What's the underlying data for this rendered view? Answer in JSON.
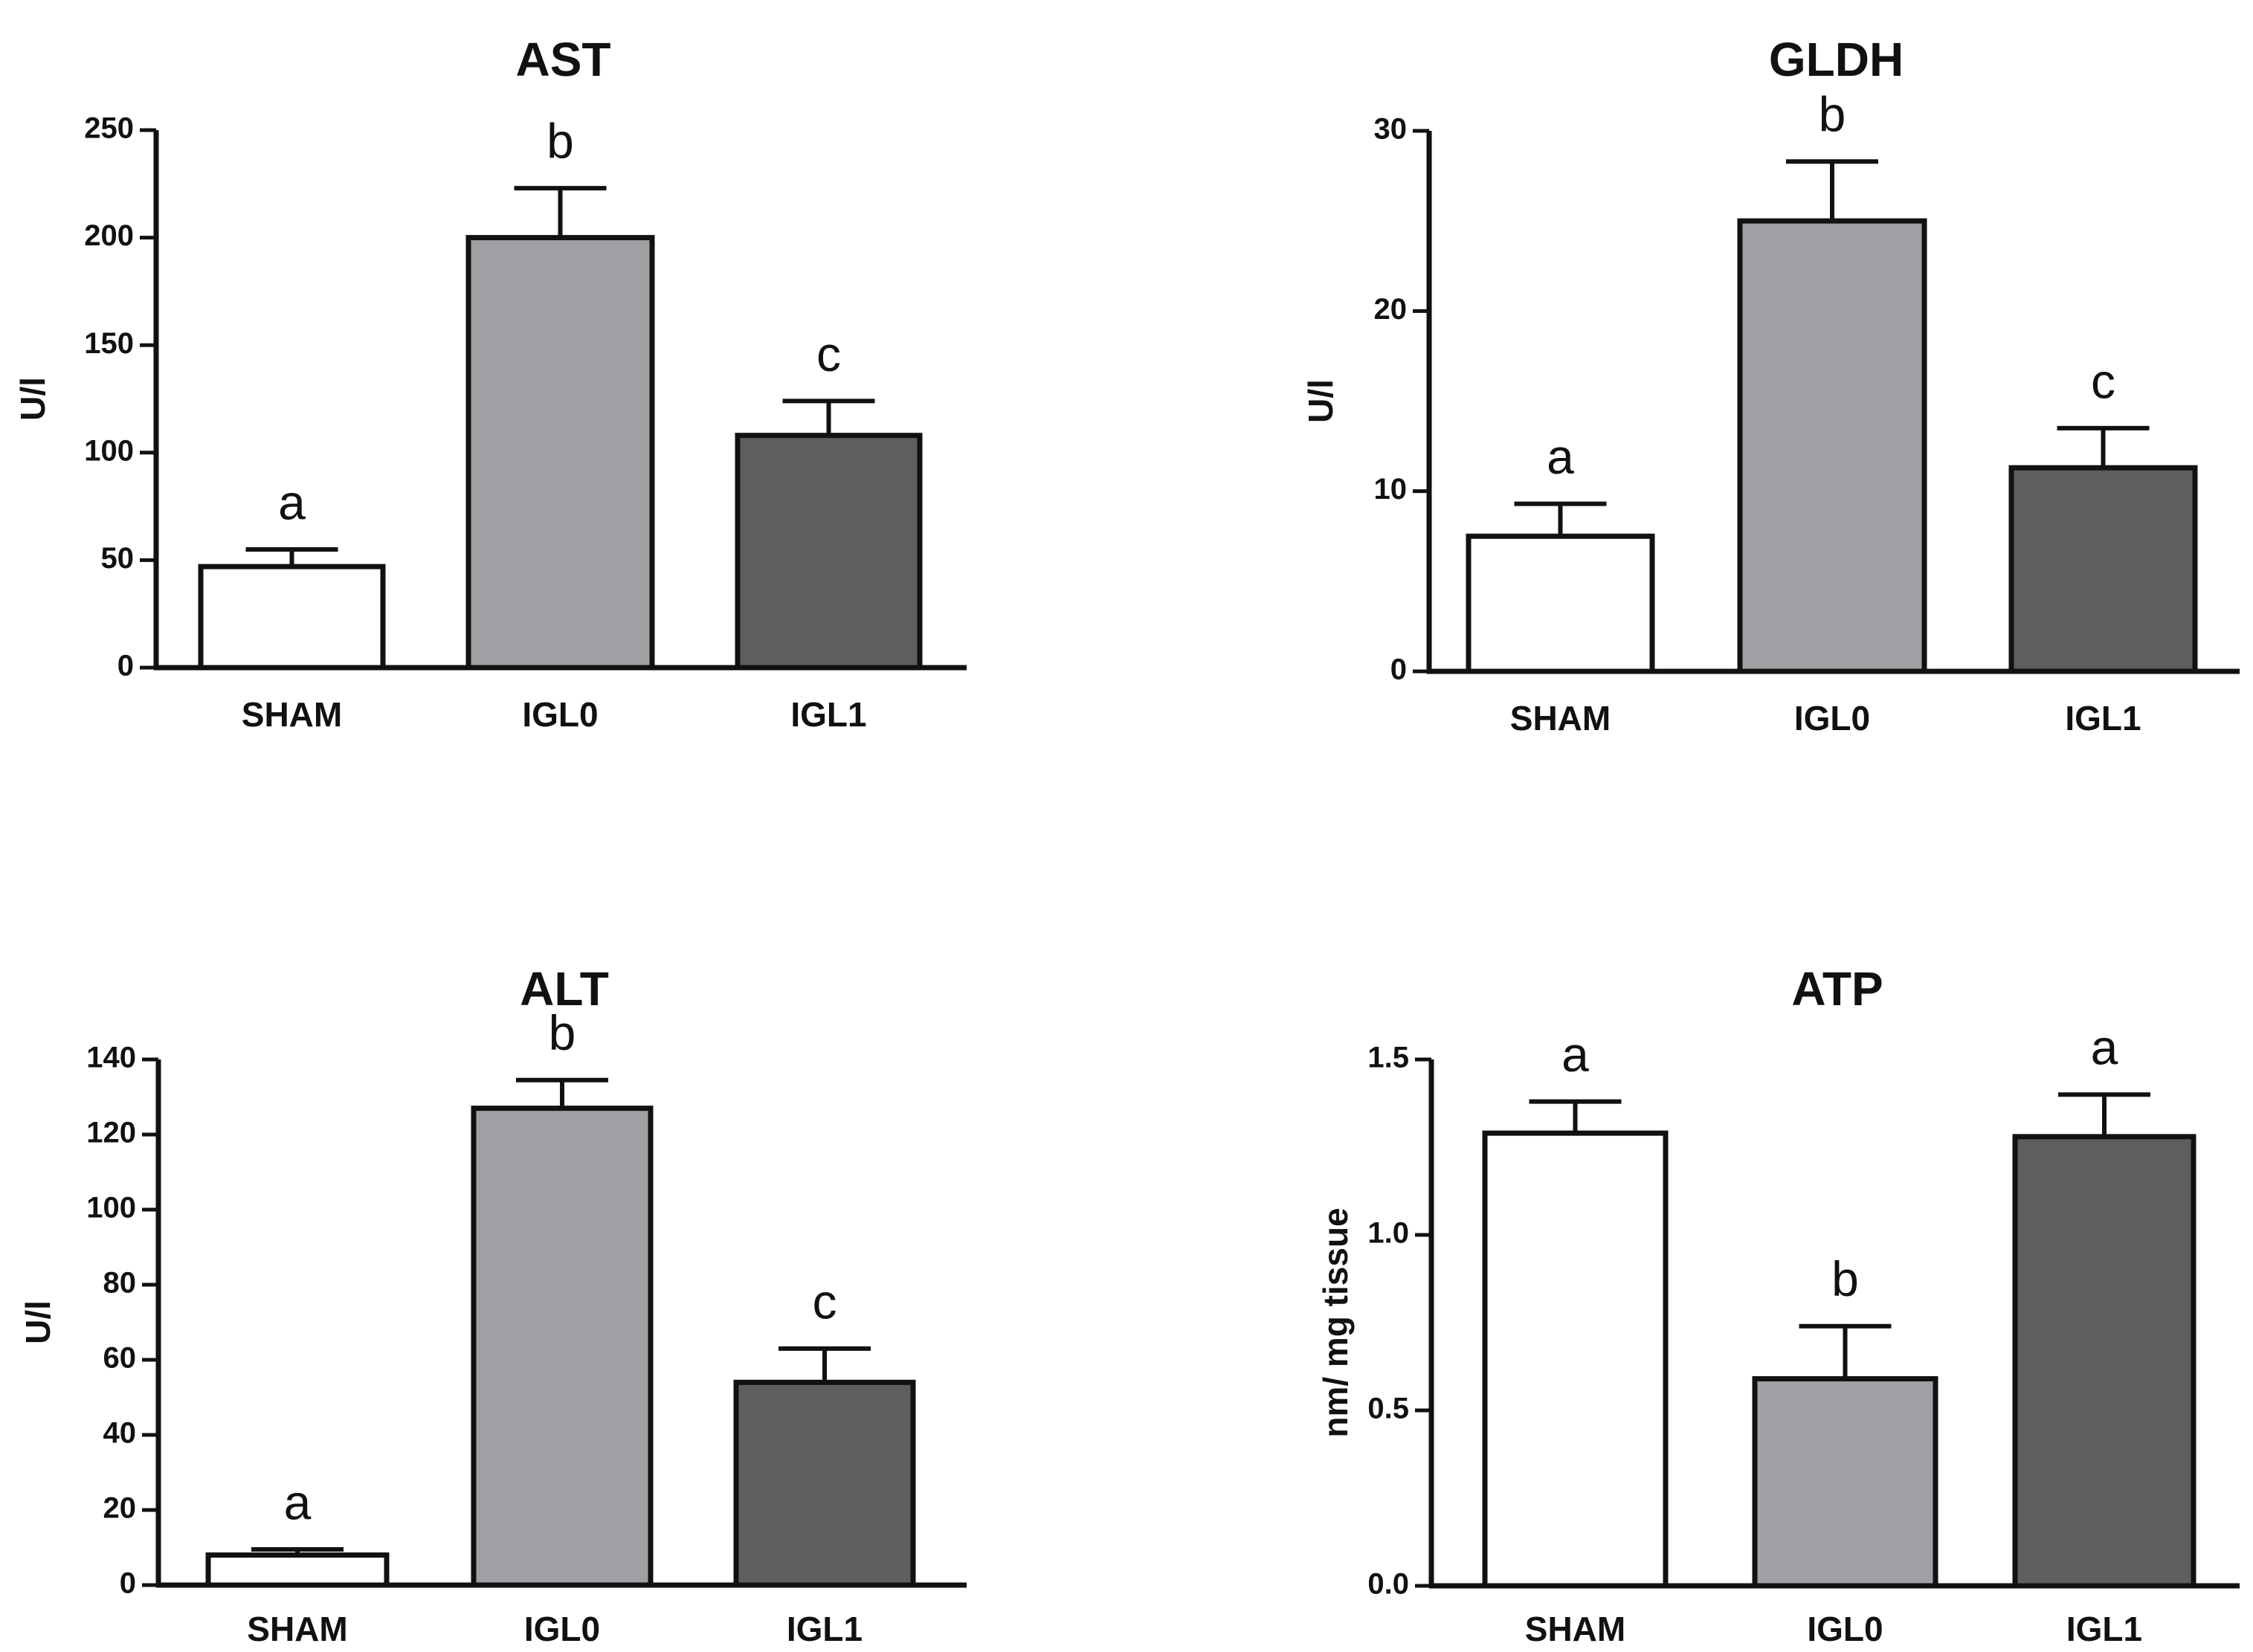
{
  "chart_data": [
    {
      "type": "bar",
      "title": "AST",
      "xlabel": "",
      "ylabel": "U/l",
      "ylim": [
        0,
        250
      ],
      "yticks": [
        "0",
        "50",
        "100",
        "150",
        "200",
        "250"
      ],
      "categories": [
        "SHAM",
        "IGL0",
        "IGL1"
      ],
      "values": [
        47,
        200,
        108
      ],
      "errors": [
        8,
        23,
        16
      ],
      "significance": [
        "a",
        "b",
        "c"
      ],
      "colors": [
        "#ffffff",
        "#a0a0a4",
        "#5e5e5e"
      ]
    },
    {
      "type": "bar",
      "title": "GLDH",
      "xlabel": "",
      "ylabel": "U/l",
      "ylim": [
        0,
        30
      ],
      "yticks": [
        "0",
        "10",
        "20",
        "30"
      ],
      "categories": [
        "SHAM",
        "IGL0",
        "IGL1"
      ],
      "values": [
        7.5,
        25,
        11.3
      ],
      "errors": [
        1.8,
        3.3,
        2.2
      ],
      "significance": [
        "a",
        "b",
        "c"
      ],
      "colors": [
        "#ffffff",
        "#a0a0a4",
        "#5e5e5e"
      ]
    },
    {
      "type": "bar",
      "title": "ALT",
      "xlabel": "",
      "ylabel": "U/l",
      "ylim": [
        0,
        140
      ],
      "yticks": [
        "0",
        "20",
        "40",
        "60",
        "80",
        "100",
        "120",
        "140"
      ],
      "categories": [
        "SHAM",
        "IGL0",
        "IGL1"
      ],
      "values": [
        8,
        127,
        54
      ],
      "errors": [
        1.5,
        7.5,
        9
      ],
      "significance": [
        "a",
        "b",
        "c"
      ],
      "colors": [
        "#ffffff",
        "#a0a0a4",
        "#5e5e5e"
      ]
    },
    {
      "type": "bar",
      "title": "ATP",
      "xlabel": "",
      "ylabel": "nm/ mg tissue",
      "ylim": [
        0,
        1.5
      ],
      "yticks": [
        "0.0",
        "0.5",
        "1.0",
        "1.5"
      ],
      "categories": [
        "SHAM",
        "IGL0",
        "IGL1"
      ],
      "values": [
        1.29,
        0.59,
        1.28
      ],
      "errors": [
        0.09,
        0.15,
        0.12
      ],
      "significance": [
        "a",
        "b",
        "a"
      ],
      "colors": [
        "#ffffff",
        "#a0a0a4",
        "#5e5e5e"
      ]
    }
  ]
}
